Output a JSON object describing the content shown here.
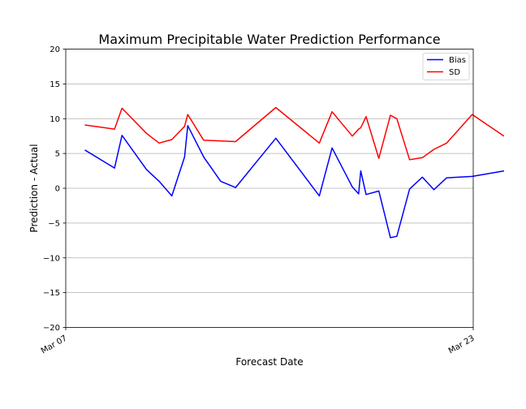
{
  "chart_data": {
    "type": "line",
    "title": "Maximum Precipitable Water Prediction Performance",
    "xlabel": "Forecast Date",
    "ylabel": "Prediction - Actual",
    "xlim": [
      "2024-03-07",
      "2024-03-23"
    ],
    "ylim": [
      -20,
      20
    ],
    "x_ticks": [
      "Mar 07",
      "Mar 23"
    ],
    "y_ticks": [
      -20,
      -15,
      -10,
      -5,
      0,
      5,
      10,
      15,
      20
    ],
    "grid": "horizontal",
    "legend_position": "top-right",
    "series": [
      {
        "name": "Bias",
        "color": "#0000ff",
        "points": [
          {
            "x": "2024-03-07T18:00",
            "y": 5.5
          },
          {
            "x": "2024-03-08T22:00",
            "y": 2.9
          },
          {
            "x": "2024-03-09T05:00",
            "y": 7.6
          },
          {
            "x": "2024-03-10T04:00",
            "y": 2.7
          },
          {
            "x": "2024-03-10T16:00",
            "y": 1.0
          },
          {
            "x": "2024-03-11T04:00",
            "y": -1.1
          },
          {
            "x": "2024-03-11T16:00",
            "y": 4.5
          },
          {
            "x": "2024-03-11T19:00",
            "y": 9.0
          },
          {
            "x": "2024-03-12T10:00",
            "y": 4.5
          },
          {
            "x": "2024-03-13T02:00",
            "y": 1.0
          },
          {
            "x": "2024-03-13T16:00",
            "y": 0.1
          },
          {
            "x": "2024-03-15T06:00",
            "y": 7.2
          },
          {
            "x": "2024-03-16T23:00",
            "y": -1.1
          },
          {
            "x": "2024-03-17T11:00",
            "y": 5.8
          },
          {
            "x": "2024-03-18T06:00",
            "y": 0.2
          },
          {
            "x": "2024-03-18T12:00",
            "y": -0.8
          },
          {
            "x": "2024-03-18T14:00",
            "y": 2.5
          },
          {
            "x": "2024-03-18T19:00",
            "y": -0.9
          },
          {
            "x": "2024-03-19T07:00",
            "y": -0.4
          },
          {
            "x": "2024-03-19T18:00",
            "y": -7.1
          },
          {
            "x": "2024-03-20T00:00",
            "y": -6.9
          },
          {
            "x": "2024-03-20T12:00",
            "y": -0.1
          },
          {
            "x": "2024-03-21T00:00",
            "y": 1.6
          },
          {
            "x": "2024-03-21T11:00",
            "y": -0.2
          },
          {
            "x": "2024-03-21T23:00",
            "y": 1.5
          },
          {
            "x": "2024-03-22T23:00",
            "y": 1.7
          },
          {
            "x": "2024-03-24T05:00",
            "y": 2.5
          }
        ]
      },
      {
        "name": "SD",
        "color": "#ff0000",
        "points": [
          {
            "x": "2024-03-07T18:00",
            "y": 9.1
          },
          {
            "x": "2024-03-08T22:00",
            "y": 8.5
          },
          {
            "x": "2024-03-09T05:00",
            "y": 11.5
          },
          {
            "x": "2024-03-10T04:00",
            "y": 7.9
          },
          {
            "x": "2024-03-10T16:00",
            "y": 6.5
          },
          {
            "x": "2024-03-11T04:00",
            "y": 7.0
          },
          {
            "x": "2024-03-11T16:00",
            "y": 8.9
          },
          {
            "x": "2024-03-11T19:00",
            "y": 10.6
          },
          {
            "x": "2024-03-12T10:00",
            "y": 6.9
          },
          {
            "x": "2024-03-13T16:00",
            "y": 6.7
          },
          {
            "x": "2024-03-15T06:00",
            "y": 11.6
          },
          {
            "x": "2024-03-16T23:00",
            "y": 6.5
          },
          {
            "x": "2024-03-17T11:00",
            "y": 11.0
          },
          {
            "x": "2024-03-18T06:00",
            "y": 7.5
          },
          {
            "x": "2024-03-18T12:00",
            "y": 8.5
          },
          {
            "x": "2024-03-18T14:00",
            "y": 8.7
          },
          {
            "x": "2024-03-18T19:00",
            "y": 10.3
          },
          {
            "x": "2024-03-19T07:00",
            "y": 4.3
          },
          {
            "x": "2024-03-19T18:00",
            "y": 10.5
          },
          {
            "x": "2024-03-20T00:00",
            "y": 10.0
          },
          {
            "x": "2024-03-20T12:00",
            "y": 4.1
          },
          {
            "x": "2024-03-21T00:00",
            "y": 4.4
          },
          {
            "x": "2024-03-21T11:00",
            "y": 5.6
          },
          {
            "x": "2024-03-21T23:00",
            "y": 6.5
          },
          {
            "x": "2024-03-22T23:00",
            "y": 10.6
          },
          {
            "x": "2024-03-24T05:00",
            "y": 7.5
          }
        ]
      }
    ]
  }
}
